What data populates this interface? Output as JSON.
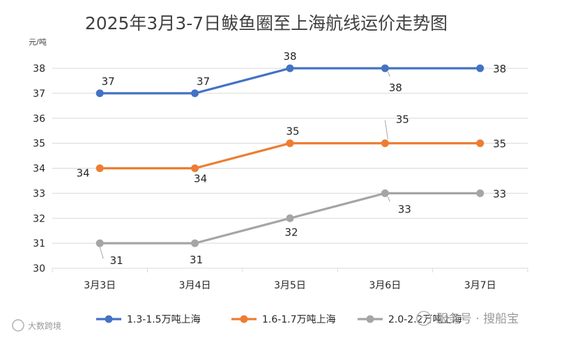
{
  "chart_data": {
    "type": "line",
    "title": "2025年3月3-7日鲅鱼圈至上海航线运价走势图",
    "unit_label": "元/吨",
    "categories": [
      "3月3日",
      "3月4日",
      "3月5日",
      "3月6日",
      "3月7日"
    ],
    "ylim": [
      30,
      38
    ],
    "yticks": [
      30,
      31,
      32,
      33,
      34,
      35,
      36,
      37,
      38
    ],
    "grid": true,
    "legend_position": "bottom",
    "series": [
      {
        "name": "1.3-1.5万吨上海",
        "color": "#4472c4",
        "values": [
          37,
          37,
          38,
          38,
          38
        ]
      },
      {
        "name": "1.6-1.7万吨上海",
        "color": "#ed7d31",
        "values": [
          34,
          34,
          35,
          35,
          35
        ]
      },
      {
        "name": "2.0-2.2万吨上海",
        "color": "#a5a5a5",
        "values": [
          31,
          31,
          32,
          33,
          33
        ]
      }
    ]
  },
  "watermark": {
    "right_text": "服务号 · 搜船宝",
    "left_text": "大数跨境"
  }
}
